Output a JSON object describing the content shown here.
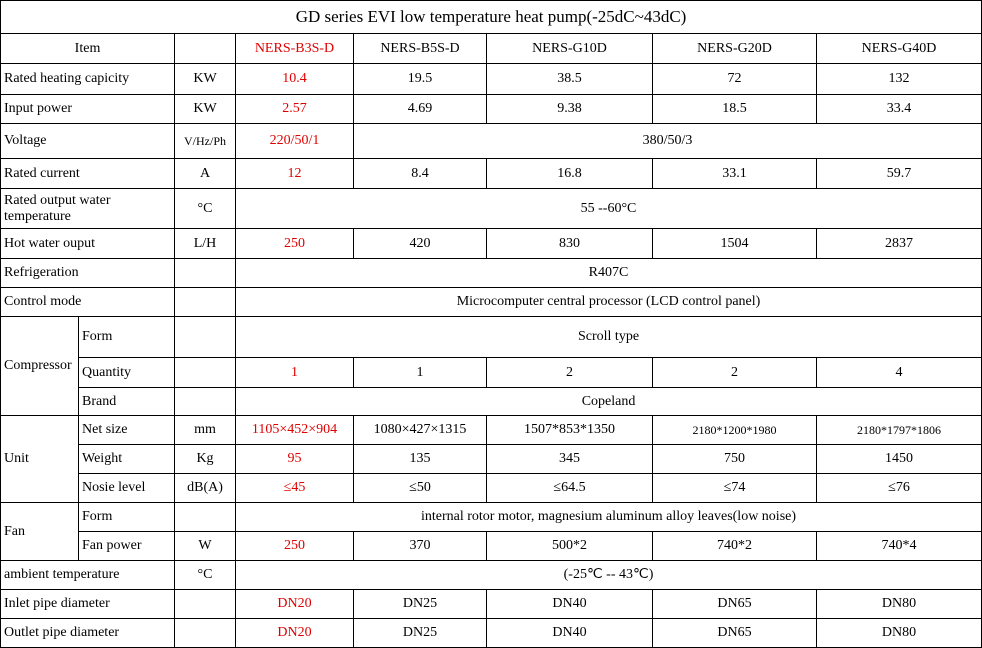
{
  "title": "GD series EVI low temperature heat pump(-25dC~43dC)",
  "table": {
    "rows": [
      [
        "Item",
        "NERS-B3S-D",
        "NERS-B5S-D",
        "NERS-G10D",
        "NERS-G20D",
        "NERS-G40D"
      ],
      [
        "Rated heating capicity",
        "KW",
        "10.4",
        "19.5",
        "38.5",
        "72",
        "132"
      ],
      [
        "Input power",
        "KW",
        "2.57",
        "4.69",
        "9.38",
        "18.5",
        "33.4"
      ],
      [
        "Voltage",
        "V/Hz/Ph",
        "220/50/1",
        "380/50/3"
      ],
      [
        "Rated current",
        "A",
        "12",
        "8.4",
        "16.8",
        "33.1",
        "59.7"
      ],
      [
        "Rated output water temperature",
        "°C",
        "55 --60°C"
      ],
      [
        "Hot water ouput",
        "L/H",
        "250",
        "420",
        "830",
        "1504",
        "2837"
      ],
      [
        "Refrigeration",
        "R407C"
      ],
      [
        "Control mode",
        "Microcomputer central processor (LCD control panel)"
      ],
      [
        "Compressor",
        "Form",
        "Scroll type"
      ],
      [
        "Quantity",
        "1",
        "1",
        "2",
        "2",
        "4"
      ],
      [
        "Brand",
        "Copeland"
      ],
      [
        "Unit",
        "Net size",
        "mm",
        "1105×452×904",
        "1080×427×1315",
        "1507*853*1350",
        "2180*1200*1980",
        "2180*1797*1806"
      ],
      [
        "Weight",
        "Kg",
        "95",
        "135",
        "345",
        "750",
        "1450"
      ],
      [
        "Nosie level",
        "dB(A)",
        "≤45",
        "≤50",
        "≤64.5",
        "≤74",
        "≤76"
      ],
      [
        "Fan",
        "Form",
        "internal rotor motor, magnesium aluminum alloy leaves(low noise)"
      ],
      [
        "Fan power",
        "W",
        "250",
        "370",
        "500*2",
        "740*2",
        "740*4"
      ],
      [
        "ambient temperature",
        "°C",
        "(-25℃ -- 43℃)"
      ],
      [
        "Inlet pipe diameter",
        "DN20",
        "DN25",
        "DN40",
        "DN65",
        "DN80"
      ],
      [
        "Outlet pipe diameter",
        "DN20",
        "DN25",
        "DN40",
        "DN65",
        "DN80"
      ]
    ]
  }
}
